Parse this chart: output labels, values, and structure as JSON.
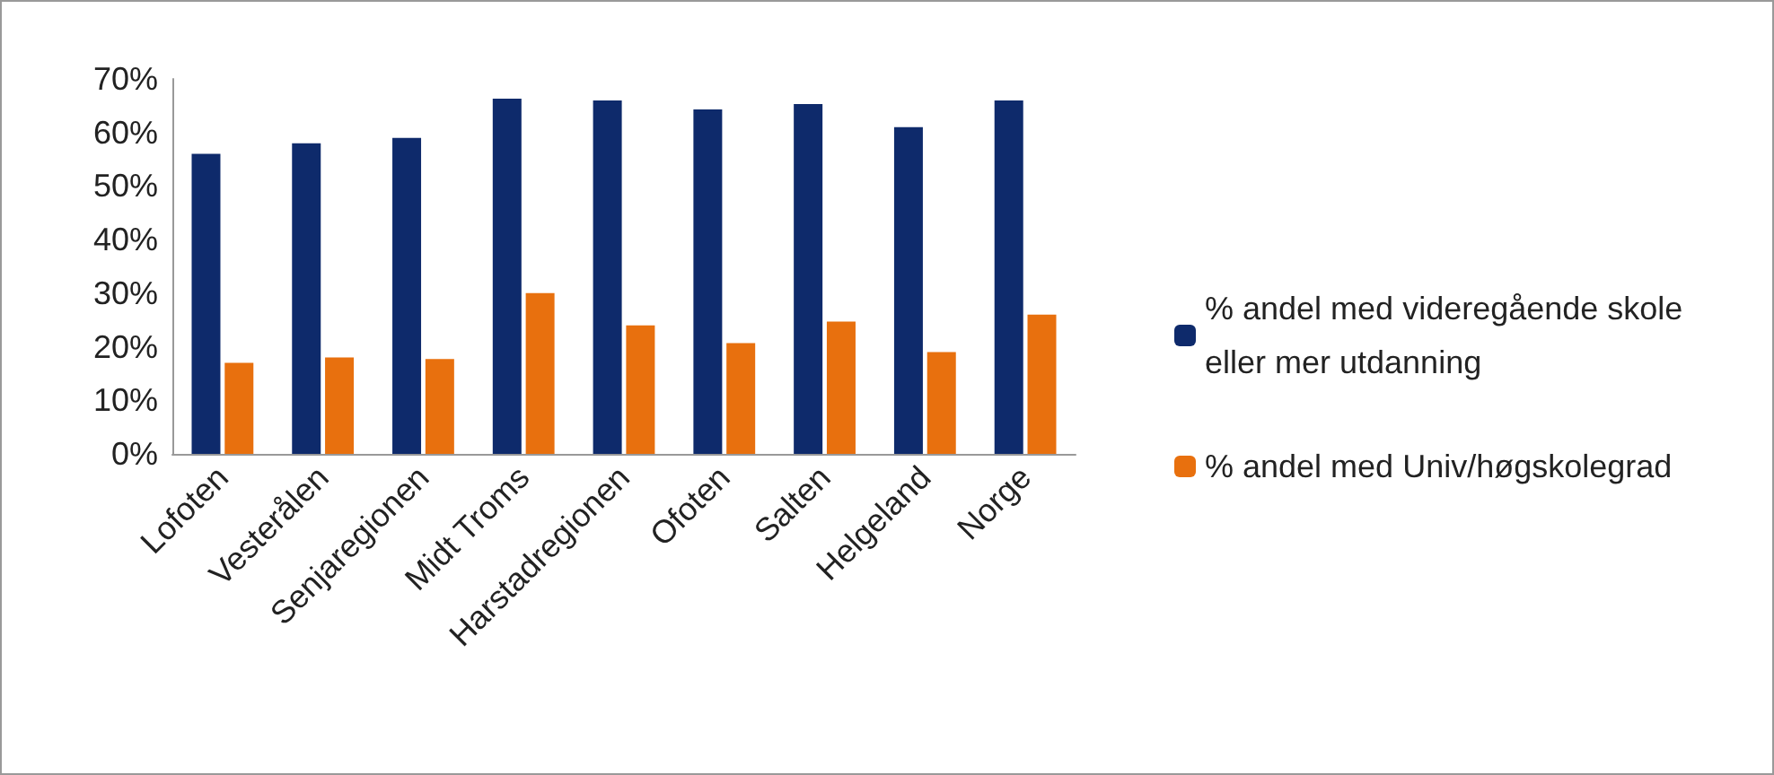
{
  "chart_data": {
    "type": "bar",
    "categories": [
      "Lofoten",
      "Vesterålen",
      "Senjaregionen",
      "Midt Troms",
      "Harstadregionen",
      "Ofoten",
      "Salten",
      "Helgeland",
      "Norge"
    ],
    "series": [
      {
        "name": "% andel med videregående skole eller mer utdanning",
        "color": "#0e2a6b",
        "values": [
          56,
          58,
          59,
          66.3,
          66,
          64.3,
          65.3,
          61,
          66
        ]
      },
      {
        "name": "% andel med Univ/høgskolegrad",
        "color": "#e8700e",
        "values": [
          17,
          18,
          17.7,
          30,
          24,
          20.7,
          24.7,
          19,
          26
        ]
      }
    ],
    "ylim": [
      0,
      70
    ],
    "yticks": [
      {
        "value": 0,
        "label": "0%"
      },
      {
        "value": 10,
        "label": "10%"
      },
      {
        "value": 20,
        "label": "20%"
      },
      {
        "value": 30,
        "label": "30%"
      },
      {
        "value": 40,
        "label": "40%"
      },
      {
        "value": 50,
        "label": "50%"
      },
      {
        "value": 60,
        "label": "60%"
      },
      {
        "value": 70,
        "label": "70%"
      }
    ],
    "grid": false,
    "legend": "right"
  }
}
